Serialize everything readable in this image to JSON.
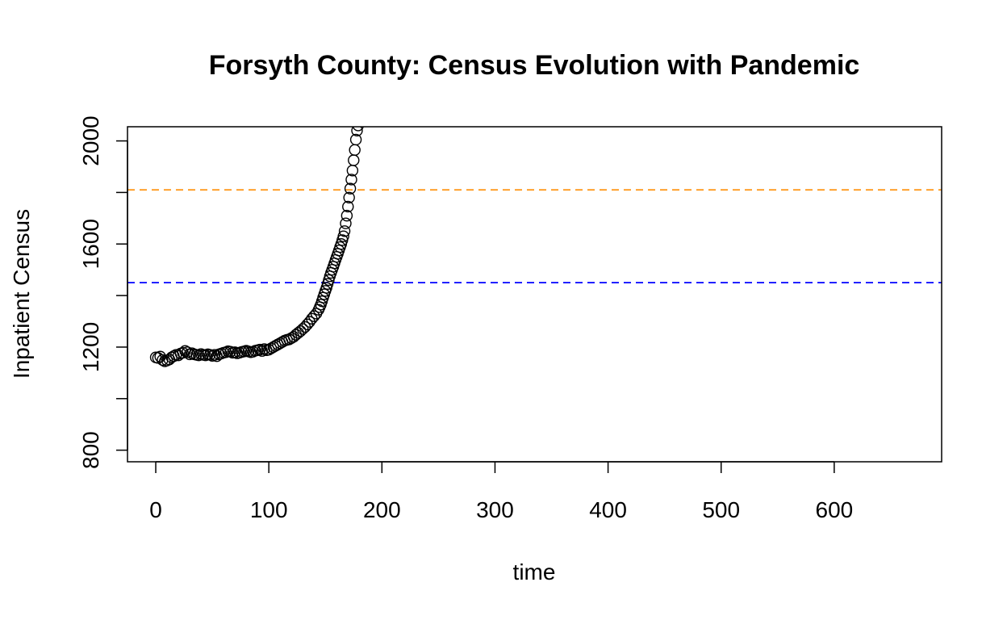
{
  "chart_data": {
    "type": "scatter",
    "title": "Forsyth County: Census Evolution with Pandemic",
    "xlabel": "time",
    "ylabel": "Inpatient Census",
    "xlim": [
      -25,
      695
    ],
    "ylim": [
      755,
      2055
    ],
    "x_ticks": [
      0,
      100,
      200,
      300,
      400,
      500,
      600
    ],
    "y_ticks": [
      800,
      1000,
      1200,
      1400,
      1600,
      1800,
      2000
    ],
    "y_tick_labels": [
      "800",
      "",
      "1200",
      "",
      "1600",
      "",
      "2000"
    ],
    "reference_lines": [
      {
        "y": 1810,
        "color": "#ff9a1e",
        "style": "dashed"
      },
      {
        "y": 1450,
        "color": "#0000ff",
        "style": "dashed"
      }
    ],
    "marker": "open-circle",
    "x": [
      0,
      2,
      4,
      6,
      8,
      10,
      12,
      14,
      16,
      18,
      20,
      22,
      24,
      26,
      28,
      30,
      32,
      34,
      36,
      38,
      40,
      42,
      44,
      46,
      48,
      50,
      52,
      54,
      56,
      58,
      60,
      62,
      64,
      66,
      68,
      70,
      72,
      74,
      76,
      78,
      80,
      82,
      84,
      86,
      88,
      90,
      92,
      94,
      96,
      98,
      100,
      102,
      104,
      106,
      108,
      110,
      112,
      114,
      116,
      118,
      120,
      122,
      124,
      126,
      128,
      130,
      132,
      134,
      136,
      138,
      140,
      142,
      144,
      145,
      146,
      147,
      148,
      149,
      150,
      151,
      152,
      153,
      154,
      155,
      156,
      157,
      158,
      159,
      160,
      161,
      162,
      163,
      164,
      165,
      166,
      167,
      168,
      169,
      170,
      171,
      172,
      173,
      174,
      175,
      176,
      177,
      178,
      179
    ],
    "y": [
      1160,
      1158,
      1163,
      1150,
      1145,
      1148,
      1152,
      1160,
      1165,
      1170,
      1168,
      1175,
      1178,
      1185,
      1180,
      1172,
      1176,
      1172,
      1170,
      1168,
      1173,
      1170,
      1168,
      1172,
      1170,
      1166,
      1170,
      1165,
      1172,
      1175,
      1178,
      1180,
      1184,
      1182,
      1178,
      1180,
      1176,
      1178,
      1181,
      1183,
      1186,
      1183,
      1180,
      1182,
      1186,
      1188,
      1190,
      1185,
      1192,
      1188,
      1190,
      1195,
      1200,
      1205,
      1210,
      1215,
      1220,
      1225,
      1228,
      1230,
      1235,
      1240,
      1248,
      1255,
      1262,
      1270,
      1278,
      1288,
      1298,
      1310,
      1320,
      1330,
      1345,
      1355,
      1365,
      1378,
      1392,
      1405,
      1418,
      1430,
      1445,
      1460,
      1475,
      1488,
      1500,
      1512,
      1525,
      1538,
      1550,
      1562,
      1575,
      1588,
      1600,
      1615,
      1630,
      1650,
      1680,
      1710,
      1745,
      1780,
      1815,
      1850,
      1885,
      1925,
      1965,
      2005,
      2040,
      2060
    ]
  }
}
